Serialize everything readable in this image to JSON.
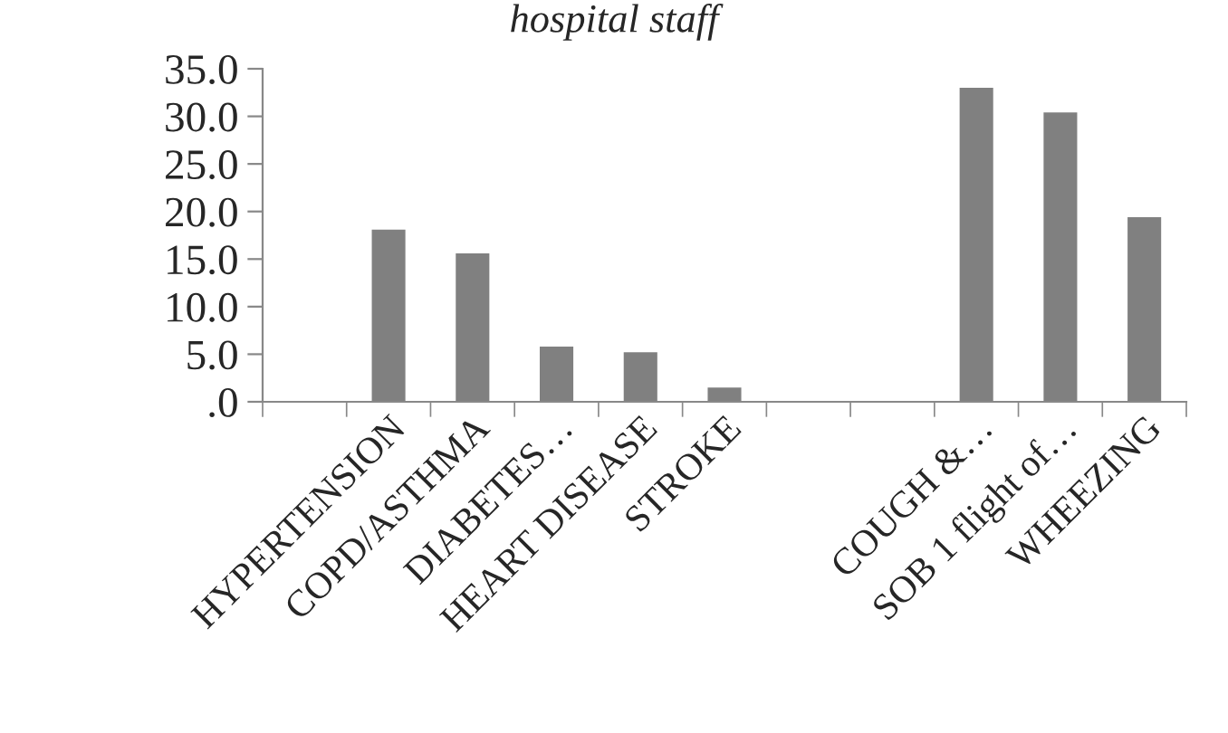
{
  "chart_data": {
    "type": "bar",
    "title": "hospital staff",
    "categories": [
      null,
      "HYPERTENSION",
      "COPD/ASTHMA",
      "DIABETES…",
      "HEART DISEASE",
      "STROKE",
      null,
      null,
      "COUGH &…",
      "SOB 1 flight of…",
      "WHEEZING"
    ],
    "values": [
      null,
      18.1,
      15.6,
      5.8,
      5.2,
      1.5,
      null,
      null,
      33.0,
      30.4,
      19.4
    ],
    "color": "#808080",
    "ylim": [
      0,
      35
    ],
    "yticks": [
      {
        "value": 0,
        "label": ".0"
      },
      {
        "value": 5,
        "label": "5.0"
      },
      {
        "value": 10,
        "label": "10.0"
      },
      {
        "value": 15,
        "label": "15.0"
      },
      {
        "value": 20,
        "label": "20.0"
      },
      {
        "value": 25,
        "label": "25.0"
      },
      {
        "value": 30,
        "label": "30.0"
      },
      {
        "value": 35,
        "label": "35.0"
      }
    ],
    "grid": false
  }
}
